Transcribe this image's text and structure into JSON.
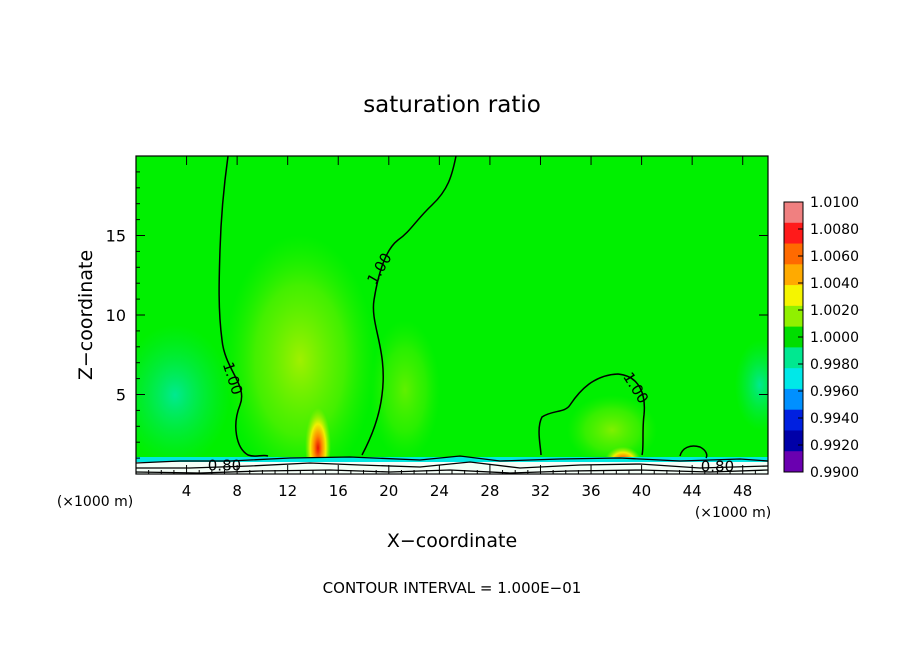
{
  "chart_data": {
    "type": "heatmap",
    "title": "saturation ratio",
    "xlabel": "X−coordinate",
    "ylabel": "Z−coordinate",
    "x_unit_left": "(×1000 m)",
    "x_unit_right": "(×1000 m)",
    "xlim": [
      0,
      50
    ],
    "ylim": [
      0,
      20
    ],
    "x_ticks": [
      4,
      8,
      12,
      16,
      20,
      24,
      28,
      32,
      36,
      40,
      44,
      48
    ],
    "y_ticks": [
      5,
      10,
      15
    ],
    "colorbar_ticks": [
      "1.0100",
      "1.0080",
      "1.0060",
      "1.0040",
      "1.0020",
      "1.0000",
      "0.9980",
      "0.9960",
      "0.9940",
      "0.9920",
      "0.9900"
    ],
    "colorbar_colors": [
      "#f08080",
      "#ff1a1a",
      "#ff6a00",
      "#ffaa00",
      "#f5f500",
      "#90f000",
      "#00dd00",
      "#00e890",
      "#00e8e8",
      "#0090ff",
      "#0020e0",
      "#0000a8",
      "#6a00b0"
    ],
    "contour_labels": [
      {
        "text": "1.00",
        "x": 19.3,
        "z": 12.9,
        "angle": -60
      },
      {
        "text": "1.00",
        "x": 7.6,
        "z": 6.0,
        "angle": 72
      },
      {
        "text": "1.00",
        "x": 39.5,
        "z": 5.4,
        "angle": 58
      },
      {
        "text": "0.80",
        "x": 7.0,
        "z": 0.5,
        "angle": 0
      },
      {
        "text": "0.80",
        "x": 46.0,
        "z": 0.45,
        "angle": 0
      }
    ],
    "footer": "CONTOUR INTERVAL = 1.000E−01",
    "background_color": "#00f000"
  }
}
